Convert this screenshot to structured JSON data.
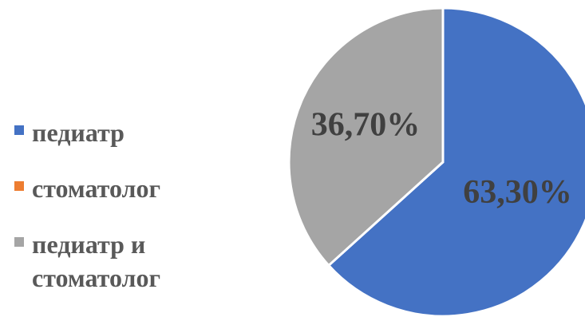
{
  "chart_data": {
    "type": "pie",
    "categories": [
      "педиатр",
      "стоматолог",
      "педиатр и стоматолог"
    ],
    "values": [
      63.3,
      0,
      36.7
    ],
    "data_labels": [
      "63,30%",
      "",
      "36,70%"
    ],
    "colors": [
      "#4472C4",
      "#ED7D31",
      "#A5A5A5"
    ],
    "legend_position": "left",
    "start_angle_deg": 0,
    "direction": "clockwise"
  }
}
